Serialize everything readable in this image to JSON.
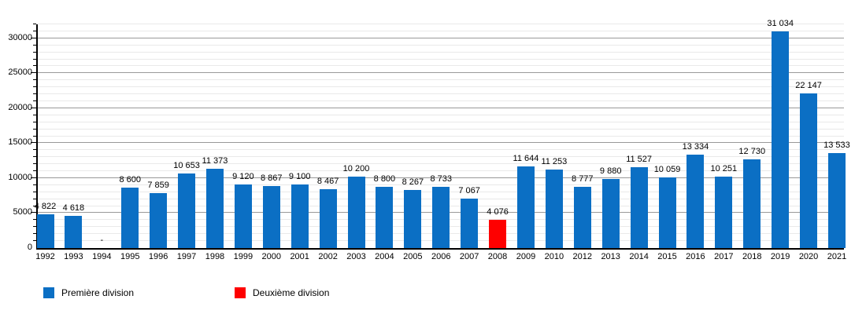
{
  "chart_data": {
    "type": "bar",
    "title": "",
    "xlabel": "",
    "ylabel": "",
    "categories": [
      "1992",
      "1993",
      "1994",
      "1995",
      "1996",
      "1997",
      "1998",
      "1999",
      "2000",
      "2001",
      "2002",
      "2003",
      "2004",
      "2005",
      "2006",
      "2007",
      "2008",
      "2009",
      "2010",
      "2012",
      "2013",
      "2014",
      "2015",
      "2016",
      "2017",
      "2018",
      "2019",
      "2020",
      "2021"
    ],
    "values": [
      4822,
      4618,
      null,
      8600,
      7859,
      10653,
      11373,
      9120,
      8867,
      9100,
      8467,
      10200,
      8800,
      8267,
      8733,
      7067,
      4076,
      11644,
      11253,
      8777,
      9880,
      11527,
      10059,
      13334,
      10251,
      12730,
      31034,
      22147,
      13533
    ],
    "value_labels": [
      "4 822",
      "4 618",
      "-",
      "8 600",
      "7 859",
      "10 653",
      "11 373",
      "9 120",
      "8 867",
      "9 100",
      "8 467",
      "10 200",
      "8 800",
      "8 267",
      "8 733",
      "7 067",
      "4 076",
      "11 644",
      "11 253",
      "8 777",
      "9 880",
      "11 527",
      "10 059",
      "13 334",
      "10 251",
      "12 730",
      "31 034",
      "22 147",
      "13 533"
    ],
    "bar_series": [
      0,
      0,
      0,
      0,
      0,
      0,
      0,
      0,
      0,
      0,
      0,
      0,
      0,
      0,
      0,
      0,
      1,
      0,
      0,
      0,
      0,
      0,
      0,
      0,
      0,
      0,
      0,
      0,
      0
    ],
    "series_names": [
      "Première division",
      "Deuxième division"
    ],
    "series_colors": [
      "#0b6fc4",
      "#fe0000"
    ],
    "ylim": [
      0,
      32000
    ],
    "y_major_step": 5000,
    "y_minor_step": 1000,
    "y_tick_labels": [
      "0",
      "5000",
      "10000",
      "15000",
      "20000",
      "25000",
      "30000"
    ],
    "grid": true,
    "legend_position": "bottom"
  },
  "legend": {
    "items": [
      {
        "label": "Première division",
        "color": "#0b6fc4"
      },
      {
        "label": "Deuxième division",
        "color": "#fe0000"
      }
    ]
  }
}
